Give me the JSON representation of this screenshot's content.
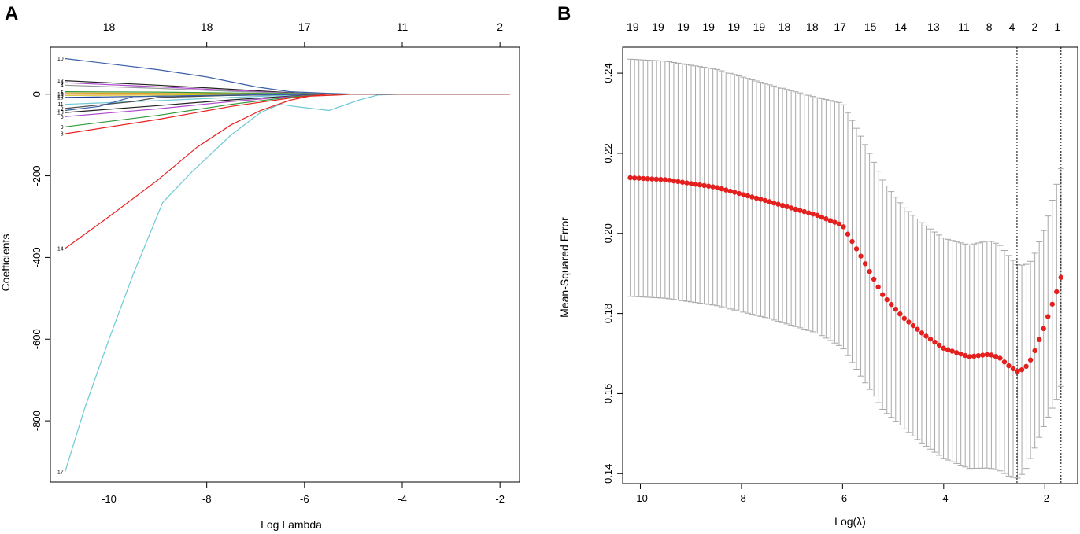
{
  "chart_data": [
    {
      "type": "line",
      "panel_label": "A",
      "title": "",
      "xlabel": "Log Lambda",
      "ylabel": "Coefficients",
      "xlim": [
        -11.2,
        -1.6
      ],
      "ylim": [
        -950,
        115
      ],
      "x_ticks": [
        "-10",
        "-8",
        "-6",
        "-4",
        "-2"
      ],
      "y_ticks": [
        "0",
        "-200",
        "-400",
        "-600",
        "-800"
      ],
      "top_axis_labels": [
        {
          "x": -10,
          "label": "18"
        },
        {
          "x": -8,
          "label": "18"
        },
        {
          "x": -6,
          "label": "17"
        },
        {
          "x": -4,
          "label": "11"
        },
        {
          "x": -2,
          "label": "2"
        }
      ],
      "series": [
        {
          "name": "17",
          "color": "#6cc9d6",
          "x": [
            -10.9,
            -10.5,
            -10,
            -9.5,
            -8.9,
            -8.3,
            -7.5,
            -6.9,
            -6.5,
            -6.2,
            -5.5,
            -4.9,
            -4.5,
            -4,
            -3,
            -2,
            -1.8
          ],
          "values": [
            -925,
            -770,
            -600,
            -440,
            -265,
            -190,
            -100,
            -45,
            -25,
            -30,
            -40,
            -15,
            -2,
            0,
            0,
            0,
            0
          ]
        },
        {
          "name": "14",
          "color": "#e8221f",
          "x": [
            -10.9,
            -10,
            -9,
            -8.2,
            -7.5,
            -6.9,
            -6.3,
            -5.9,
            -5.3,
            -5,
            -4,
            -2,
            -1.8
          ],
          "values": [
            -378,
            -300,
            -210,
            -130,
            -75,
            -40,
            -15,
            -5,
            -2,
            0,
            0,
            0,
            0
          ]
        },
        {
          "name": "10",
          "color": "#3a5fa6",
          "x": [
            -10.9,
            -9,
            -8,
            -7,
            -6.3,
            -5.5,
            -5,
            -3,
            -1.8
          ],
          "values": [
            87,
            60,
            42,
            18,
            6,
            2,
            0,
            0,
            0
          ]
        },
        {
          "name": "12",
          "color": "#222222",
          "x": [
            -10.9,
            -9,
            -7.5,
            -6.2,
            -5.5,
            -3,
            -1.8
          ],
          "values": [
            33,
            22,
            12,
            3,
            0,
            0,
            0
          ]
        },
        {
          "name": "3",
          "color": "#b04bd0",
          "x": [
            -10.9,
            -9,
            -7.5,
            -6.2,
            -5.5,
            -3,
            -1.8
          ],
          "values": [
            28,
            18,
            9,
            2,
            0,
            0,
            0
          ]
        },
        {
          "name": "4",
          "color": "#9a9a9a",
          "x": [
            -10.9,
            -9,
            -7.5,
            -6.2,
            -5.5,
            -3,
            -1.8
          ],
          "values": [
            22,
            14,
            7,
            2,
            0,
            0,
            0
          ]
        },
        {
          "name": "1",
          "color": "#2f9a3a",
          "x": [
            -10.9,
            -9,
            -7.5,
            -6.2,
            -5.5,
            -3,
            -1.8
          ],
          "values": [
            6,
            5,
            3,
            1,
            0,
            0,
            0
          ]
        },
        {
          "name": "5",
          "color": "#e0a020",
          "x": [
            -10.9,
            -9,
            -7.5,
            -6.2,
            -5.5,
            -3,
            -1.8
          ],
          "values": [
            3,
            2,
            1,
            0,
            0,
            0,
            0
          ]
        },
        {
          "name": "18",
          "color": "#ff66cc",
          "x": [
            -10.9,
            -9,
            -7.5,
            -6.2,
            -5.5,
            -3,
            -1.8
          ],
          "values": [
            0,
            0,
            0,
            0,
            0,
            0,
            0
          ]
        },
        {
          "name": "19",
          "color": "#d4c61a",
          "x": [
            -10.9,
            -9,
            -7.5,
            -6.2,
            -5.5,
            -3,
            -1.8
          ],
          "values": [
            -3,
            -2,
            -1,
            0,
            0,
            0,
            0
          ]
        },
        {
          "name": "13",
          "color": "#1f3f8f",
          "x": [
            -10.9,
            -9,
            -7.5,
            -6.2,
            -5.5,
            -3,
            -1.8
          ],
          "values": [
            -8,
            -5,
            -3,
            -1,
            0,
            0,
            0
          ]
        },
        {
          "name": "11",
          "color": "#6cc9d6",
          "x": [
            -10.9,
            -9,
            -7.5,
            -6.2,
            -5.5,
            -3,
            -1.8
          ],
          "values": [
            -25,
            -16,
            -8,
            -2,
            0,
            0,
            0
          ]
        },
        {
          "name": "2",
          "color": "#4a4a4a",
          "x": [
            -10.9,
            -9.5,
            -9,
            -7.5,
            -6.2,
            -5.5,
            -3,
            -1.8
          ],
          "values": [
            -35,
            -18,
            -8,
            -3,
            -1,
            0,
            0,
            0
          ]
        },
        {
          "name": "16",
          "color": "#3a5fa6",
          "x": [
            -10.9,
            -10.2,
            -9.5,
            -7.5,
            -6.2,
            -5.5,
            -3,
            -1.8
          ],
          "values": [
            -40,
            -30,
            -6,
            -2,
            -1,
            0,
            0,
            0
          ]
        },
        {
          "name": "15",
          "color": "#222222",
          "x": [
            -10.9,
            -9,
            -7.5,
            -6.2,
            -5.5,
            -3,
            -1.8
          ],
          "values": [
            -45,
            -28,
            -14,
            -4,
            0,
            0,
            0
          ]
        },
        {
          "name": "6",
          "color": "#b04bd0",
          "x": [
            -10.9,
            -9,
            -7.5,
            -6.2,
            -5.5,
            -3,
            -1.8
          ],
          "values": [
            -55,
            -36,
            -18,
            -5,
            0,
            0,
            0
          ]
        },
        {
          "name": "9",
          "color": "#2f9a3a",
          "x": [
            -10.9,
            -9,
            -7.5,
            -6.2,
            -5.5,
            -3,
            -1.8
          ],
          "values": [
            -80,
            -52,
            -25,
            -6,
            0,
            0,
            0
          ]
        },
        {
          "name": "8",
          "color": "#e8221f",
          "x": [
            -10.9,
            -9,
            -7.5,
            -6.2,
            -5.5,
            -3,
            -1.8
          ],
          "values": [
            -97,
            -62,
            -30,
            -8,
            0,
            0,
            0
          ]
        }
      ]
    },
    {
      "type": "scatter",
      "panel_label": "B",
      "title": "",
      "xlabel": "Log(λ)",
      "ylabel": "Mean-Squared Error",
      "xlim": [
        -10.35,
        -1.35
      ],
      "ylim": [
        0.1375,
        0.2465
      ],
      "x_ticks": [
        "-10",
        "-8",
        "-6",
        "-4",
        "-2"
      ],
      "y_ticks": [
        "0.14",
        "0.16",
        "0.18",
        "0.20",
        "0.22",
        "0.24"
      ],
      "top_axis_labels": [
        {
          "x": -10.15,
          "label": "19"
        },
        {
          "x": -9.65,
          "label": "19"
        },
        {
          "x": -9.15,
          "label": "19"
        },
        {
          "x": -8.65,
          "label": "19"
        },
        {
          "x": -8.15,
          "label": "19"
        },
        {
          "x": -7.65,
          "label": "19"
        },
        {
          "x": -7.15,
          "label": "18"
        },
        {
          "x": -6.6,
          "label": "18"
        },
        {
          "x": -6.05,
          "label": "17"
        },
        {
          "x": -5.45,
          "label": "15"
        },
        {
          "x": -4.85,
          "label": "14"
        },
        {
          "x": -4.2,
          "label": "13"
        },
        {
          "x": -3.6,
          "label": "11"
        },
        {
          "x": -3.1,
          "label": "8"
        },
        {
          "x": -2.65,
          "label": "4"
        },
        {
          "x": -2.2,
          "label": "2"
        },
        {
          "x": -1.75,
          "label": "1"
        }
      ],
      "vlines": [
        -2.55,
        -1.68
      ],
      "point_color": "#e3201e",
      "bar_color": "#a8a8a8",
      "curve_knots": {
        "x": [
          -10.2,
          -9.5,
          -8.5,
          -7.5,
          -6.5,
          -6.0,
          -5.6,
          -5.2,
          -4.8,
          -4.4,
          -4.0,
          -3.5,
          -3.1,
          -2.9,
          -2.7,
          -2.55,
          -2.4,
          -2.25,
          -2.0,
          -1.75,
          -1.68
        ],
        "mean": [
          0.2139,
          0.2134,
          0.2115,
          0.2081,
          0.2045,
          0.202,
          0.1935,
          0.1845,
          0.179,
          0.1748,
          0.1713,
          0.1692,
          0.1698,
          0.169,
          0.1668,
          0.1655,
          0.1662,
          0.169,
          0.177,
          0.186,
          0.189
        ],
        "se": [
          0.0296,
          0.0296,
          0.0295,
          0.0292,
          0.0294,
          0.0305,
          0.0299,
          0.0286,
          0.0276,
          0.0275,
          0.0275,
          0.0279,
          0.0284,
          0.0282,
          0.0275,
          0.0267,
          0.0258,
          0.0243,
          0.0245,
          0.027,
          0.0272
        ]
      }
    }
  ]
}
